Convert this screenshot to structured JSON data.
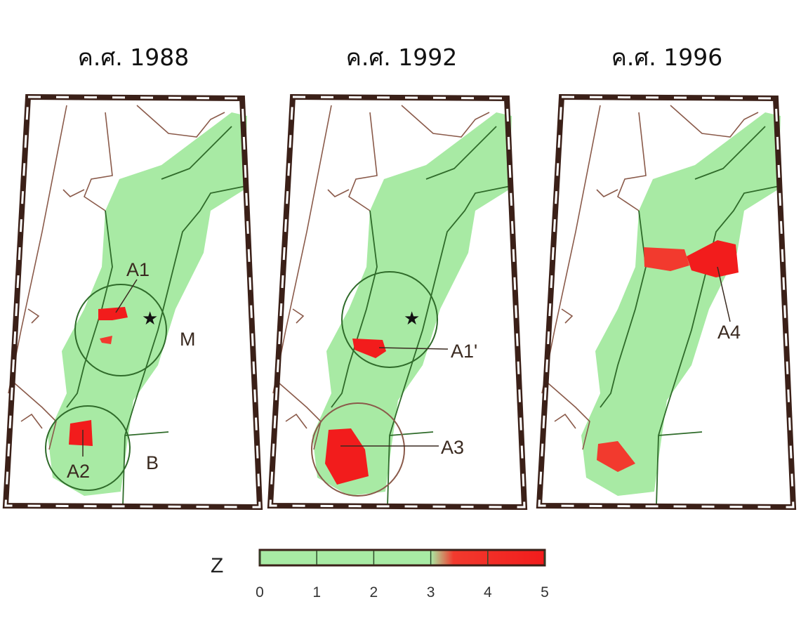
{
  "panels": [
    {
      "title": "ค.ศ. 1988",
      "labels": [
        "A1",
        "M",
        "A2",
        "B"
      ]
    },
    {
      "title": "ค.ศ. 1992",
      "labels": [
        "A1'",
        "A3"
      ]
    },
    {
      "title": "ค.ศ. 1996",
      "labels": [
        "A4"
      ]
    }
  ],
  "colorbar": {
    "label": "Z",
    "lim": [
      0,
      5
    ],
    "ticks": [
      0,
      1,
      2,
      3,
      4,
      5
    ]
  }
}
